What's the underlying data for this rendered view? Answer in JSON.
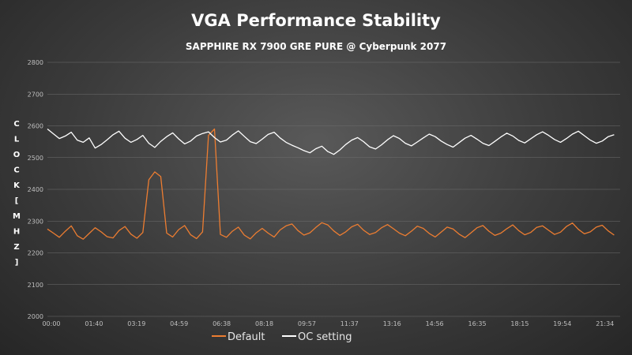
{
  "chart_data": {
    "type": "line",
    "title": "VGA Performance Stability",
    "subtitle": "SAPPHIRE RX 7900 GRE PURE @ Cyberpunk 2077",
    "ylabel": "CLOCK [MHZ]",
    "xlabel": "",
    "ylim": [
      2000,
      2800
    ],
    "yticks": [
      2000,
      2100,
      2200,
      2300,
      2400,
      2500,
      2600,
      2700,
      2800
    ],
    "xticks": [
      "00:00",
      "01:40",
      "03:19",
      "04:59",
      "06:38",
      "08:18",
      "09:57",
      "11:37",
      "13:16",
      "14:56",
      "16:35",
      "18:15",
      "19:54",
      "21:34"
    ],
    "x_range_seconds": [
      0,
      1440
    ],
    "grid": true,
    "legend_position": "bottom-center",
    "series": [
      {
        "name": "Default",
        "color": "#ed7d31",
        "sample_every_seconds": 15,
        "values": [
          2275,
          2262,
          2249,
          2268,
          2285,
          2254,
          2243,
          2261,
          2279,
          2266,
          2251,
          2247,
          2270,
          2283,
          2259,
          2246,
          2264,
          2430,
          2455,
          2440,
          2262,
          2250,
          2273,
          2286,
          2257,
          2245,
          2266,
          2570,
          2590,
          2258,
          2249,
          2268,
          2281,
          2256,
          2244,
          2263,
          2277,
          2262,
          2250,
          2272,
          2285,
          2291,
          2270,
          2256,
          2263,
          2280,
          2295,
          2288,
          2269,
          2255,
          2266,
          2282,
          2290,
          2271,
          2258,
          2264,
          2279,
          2289,
          2276,
          2262,
          2254,
          2268,
          2284,
          2277,
          2261,
          2250,
          2265,
          2281,
          2275,
          2259,
          2248,
          2263,
          2279,
          2286,
          2268,
          2255,
          2262,
          2276,
          2288,
          2270,
          2257,
          2264,
          2280,
          2285,
          2271,
          2258,
          2265,
          2283,
          2294,
          2274,
          2260,
          2266,
          2281,
          2287,
          2269,
          2256
        ]
      },
      {
        "name": "OC setting",
        "color": "#ffffff",
        "sample_every_seconds": 15,
        "values": [
          2590,
          2575,
          2560,
          2568,
          2580,
          2555,
          2548,
          2562,
          2530,
          2541,
          2556,
          2572,
          2583,
          2561,
          2548,
          2557,
          2570,
          2545,
          2532,
          2551,
          2566,
          2578,
          2559,
          2543,
          2552,
          2568,
          2576,
          2581,
          2563,
          2549,
          2555,
          2571,
          2584,
          2567,
          2550,
          2544,
          2558,
          2573,
          2580,
          2562,
          2548,
          2539,
          2531,
          2522,
          2515,
          2528,
          2536,
          2519,
          2510,
          2524,
          2541,
          2555,
          2563,
          2550,
          2534,
          2527,
          2540,
          2556,
          2569,
          2560,
          2545,
          2537,
          2549,
          2562,
          2574,
          2566,
          2552,
          2541,
          2533,
          2547,
          2561,
          2570,
          2558,
          2545,
          2538,
          2551,
          2565,
          2577,
          2568,
          2554,
          2546,
          2559,
          2572,
          2581,
          2570,
          2557,
          2548,
          2560,
          2574,
          2583,
          2569,
          2555,
          2545,
          2552,
          2566,
          2572
        ]
      }
    ],
    "legend": [
      "Default",
      "OC setting"
    ]
  }
}
